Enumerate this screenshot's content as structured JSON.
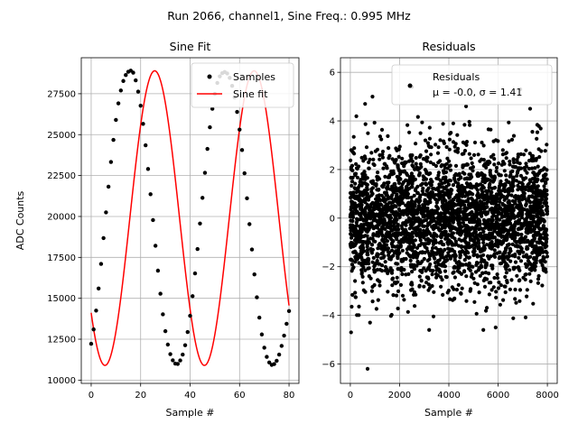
{
  "suptitle": "Run 2066, channel1, Sine Freq.: 0.995 MHz",
  "chart_data": [
    {
      "type": "line",
      "title": "Sine Fit",
      "xlabel": "Sample #",
      "ylabel": "ADC Counts",
      "xlim": [
        -4,
        84
      ],
      "ylim": [
        9800,
        29700
      ],
      "xticks": [
        0,
        20,
        40,
        60,
        80
      ],
      "yticks": [
        10000,
        12500,
        15000,
        17500,
        20000,
        22500,
        25000,
        27500
      ],
      "ytick_labels": [
        "10000",
        "12500",
        "15000",
        "17500",
        "20000",
        "22500",
        "25000",
        "27500"
      ],
      "grid": true,
      "legend": {
        "position": "top-right",
        "entries": [
          "Samples",
          "Sine fit"
        ]
      },
      "sine_fit": {
        "offset": 19900,
        "amplitude": 9000,
        "period_samples": 40.2,
        "phase_deg": -140,
        "color": "#ff0000"
      },
      "series": [
        {
          "name": "Samples",
          "style": "markers",
          "color": "#000000",
          "x": [
            0,
            1,
            2,
            3,
            4,
            5,
            6,
            7,
            8,
            9,
            10,
            11,
            12,
            13,
            14,
            15,
            16,
            17,
            18,
            19,
            20,
            21,
            22,
            23,
            24,
            25,
            26,
            27,
            28,
            29,
            30,
            31,
            32,
            33,
            34,
            35,
            36,
            37,
            38,
            39,
            40,
            41,
            42,
            43,
            44,
            45,
            46,
            47,
            48,
            49,
            50,
            51,
            52,
            53,
            54,
            55,
            56,
            57,
            58,
            59,
            60,
            61,
            62,
            63,
            64,
            65,
            66,
            67,
            68,
            69,
            70,
            71,
            72,
            73,
            74,
            75,
            76,
            77,
            78,
            79,
            80
          ],
          "y": [
            12220,
            13100,
            14250,
            15600,
            17100,
            18680,
            20250,
            21820,
            23330,
            24680,
            25900,
            26910,
            27700,
            28280,
            28640,
            28840,
            28910,
            28790,
            28320,
            27630,
            26770,
            25660,
            24350,
            22900,
            21360,
            19780,
            18210,
            16690,
            15280,
            14020,
            12990,
            12170,
            11590,
            11210,
            11010,
            10990,
            11200,
            11560,
            12130,
            12940,
            13930,
            15130,
            16520,
            18010,
            19570,
            21140,
            22670,
            24130,
            25450,
            26580,
            27490,
            28160,
            28560,
            28760,
            28830,
            28740,
            28470,
            27980,
            27280,
            26390,
            25310,
            24060,
            22640,
            21110,
            19530,
            17980,
            16460,
            15060,
            13820,
            12790,
            11980,
            11420,
            11080,
            10930,
            10980,
            11180,
            11560,
            12090,
            12720,
            13440,
            14220
          ]
        },
        {
          "name": "Sine fit",
          "style": "line",
          "color": "#ff0000"
        }
      ]
    },
    {
      "type": "scatter",
      "title": "Residuals",
      "xlabel": "Sample #",
      "ylabel": "",
      "xlim": [
        -400,
        8400
      ],
      "ylim": [
        -6.8,
        6.6
      ],
      "xticks": [
        0,
        2000,
        4000,
        6000,
        8000
      ],
      "yticks": [
        -6,
        -4,
        -2,
        0,
        2,
        4,
        6
      ],
      "ytick_labels": [
        "−6",
        "−4",
        "−2",
        "0",
        "2",
        "4",
        "6"
      ],
      "grid": true,
      "legend": {
        "position": "top-right",
        "entries": [
          "Residuals",
          "μ = -0.0, σ = 1.41"
        ]
      },
      "summary": {
        "mean": -0.0,
        "sigma": 1.41,
        "n_samples": 8000,
        "x_range": [
          0,
          8000
        ]
      },
      "series": [
        {
          "name": "Residuals",
          "style": "markers",
          "color": "#000000",
          "x_outliers": [
            30,
            700,
            900,
            2500,
            4700,
            5400,
            6900,
            7300,
            800,
            3200,
            5900,
            600
          ],
          "y_outliers": [
            -4.7,
            -6.2,
            5.0,
            5.4,
            4.6,
            -4.6,
            5.3,
            4.5,
            -4.3,
            -4.6,
            -4.5,
            4.7
          ]
        }
      ]
    }
  ]
}
